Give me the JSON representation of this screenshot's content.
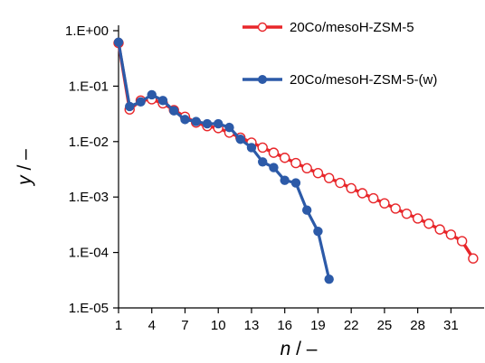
{
  "chart_data": {
    "type": "line",
    "xlabel": {
      "var": "n",
      "unit": " / –"
    },
    "ylabel": {
      "var": "y",
      "unit": " / –"
    },
    "xlim": [
      1,
      33.5
    ],
    "ylim": [
      1e-05,
      1
    ],
    "yscale": "log",
    "grid": false,
    "legend_position": "top-right",
    "x_ticks": [
      1,
      4,
      7,
      10,
      13,
      16,
      19,
      22,
      25,
      28,
      31
    ],
    "x_tick_labels": [
      "1",
      "4",
      "7",
      "10",
      "13",
      "16",
      "19",
      "22",
      "25",
      "28",
      "31"
    ],
    "y_ticks": [
      1e-05,
      0.0001,
      0.001,
      0.01,
      0.1,
      1
    ],
    "y_tick_labels": [
      "1.E-05",
      "1.E-04",
      "1.E-03",
      "1.E-02",
      "1.E-01",
      "1.E+00"
    ],
    "series": [
      {
        "name": "20Co/mesoH-ZSM-5",
        "color": "#e8262a",
        "marker": "open-circle",
        "x": [
          1,
          2,
          3,
          4,
          5,
          6,
          7,
          8,
          9,
          10,
          11,
          12,
          13,
          14,
          15,
          16,
          17,
          18,
          19,
          20,
          21,
          22,
          23,
          24,
          25,
          26,
          27,
          28,
          29,
          30,
          31,
          32,
          33
        ],
        "y": [
          0.6,
          0.038,
          0.055,
          0.058,
          0.049,
          0.037,
          0.028,
          0.022,
          0.019,
          0.0175,
          0.0145,
          0.0118,
          0.0096,
          0.0078,
          0.0063,
          0.0051,
          0.0041,
          0.0033,
          0.0027,
          0.0022,
          0.0018,
          0.00144,
          0.00117,
          0.00095,
          0.00077,
          0.00062,
          0.0005,
          0.00041,
          0.00033,
          0.00026,
          0.00021,
          0.00016,
          7.8e-05
        ]
      },
      {
        "name": "20Co/mesoH-ZSM-5-(w)",
        "color": "#2c5aa8",
        "marker": "filled-circle",
        "x": [
          1,
          2,
          3,
          4,
          5,
          6,
          7,
          8,
          9,
          10,
          11,
          12,
          13,
          14,
          15,
          16,
          17,
          18,
          19,
          20
        ],
        "y": [
          0.62,
          0.043,
          0.052,
          0.07,
          0.055,
          0.036,
          0.025,
          0.023,
          0.021,
          0.021,
          0.018,
          0.011,
          0.0078,
          0.0043,
          0.0034,
          0.002,
          0.0018,
          0.00058,
          0.00024,
          3.3e-05
        ]
      }
    ]
  }
}
